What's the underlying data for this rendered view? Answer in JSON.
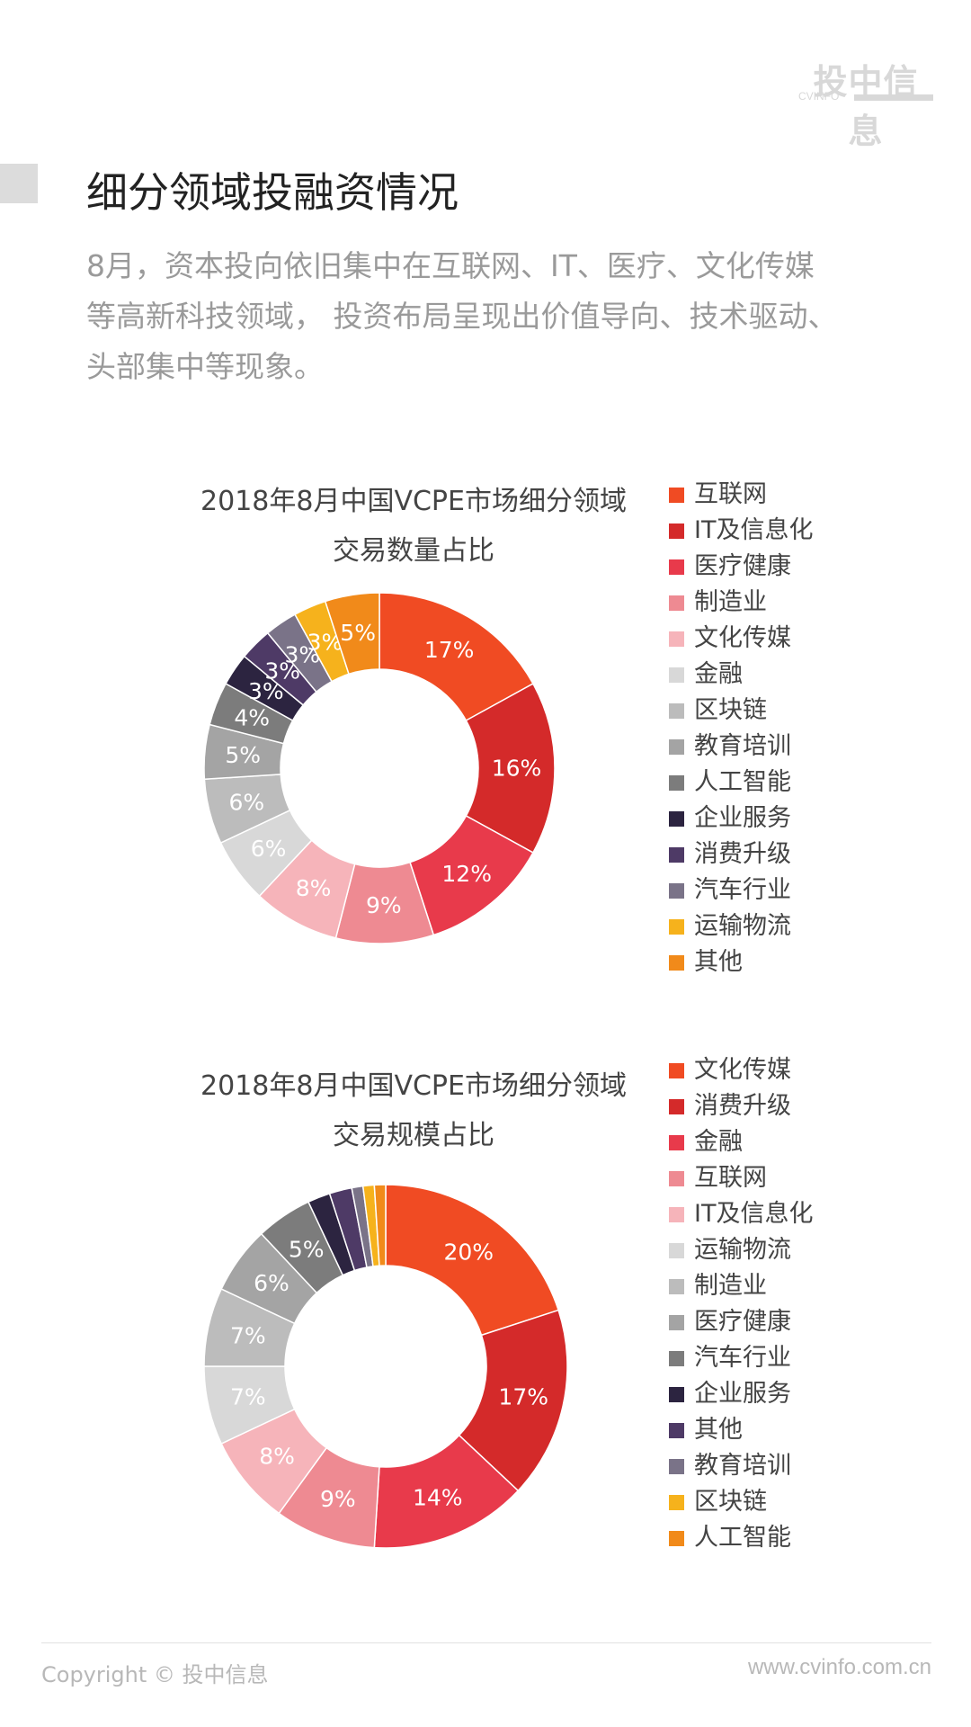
{
  "logo": {
    "main": "投中信息",
    "sub": "CVINFO"
  },
  "heading": "细分领域投融资情况",
  "intro_lines": [
    "8月，资本投向依旧集中在互联网、IT、医疗、文化传媒",
    "等高新科技领域， 投资布局呈现出价值导向、技术驱动、",
    "头部集中等现象。"
  ],
  "chart_data": [
    {
      "type": "pie",
      "donut": true,
      "title_lines": [
        "2018年8月中国VCPE市场细分领域",
        "交易数量占比"
      ],
      "legend_position": "right",
      "categories": [
        "互联网",
        "IT及信息化",
        "医疗健康",
        "制造业",
        "文化传媒",
        "金融",
        "区块链",
        "教育培训",
        "人工智能",
        "企业服务",
        "消费升级",
        "汽车行业",
        "运输物流",
        "其他"
      ],
      "values": [
        17,
        16,
        12,
        9,
        8,
        6,
        6,
        5,
        4,
        3,
        3,
        3,
        3,
        5
      ],
      "data_labels": [
        "17%",
        "16%",
        "12%",
        "9%",
        "8%",
        "6%",
        "6%",
        "5%",
        "4%",
        "3%",
        "3%",
        "3%",
        "3%",
        "5%"
      ],
      "colors": [
        "#f04b23",
        "#d42a2a",
        "#e83a4b",
        "#ee8a92",
        "#f6b4ba",
        "#d8d8d8",
        "#bcbcbc",
        "#a4a4a4",
        "#7c7c7c",
        "#2c2440",
        "#4e3a66",
        "#7a7388",
        "#f6b21c",
        "#f18a1a"
      ]
    },
    {
      "type": "pie",
      "donut": true,
      "title_lines": [
        "2018年8月中国VCPE市场细分领域",
        "交易规模占比"
      ],
      "legend_position": "right",
      "categories": [
        "文化传媒",
        "消费升级",
        "金融",
        "互联网",
        "IT及信息化",
        "运输物流",
        "制造业",
        "医疗健康",
        "汽车行业",
        "企业服务",
        "其他",
        "教育培训",
        "区块链",
        "人工智能"
      ],
      "values": [
        20,
        17,
        14,
        9,
        8,
        7,
        7,
        6,
        5,
        2,
        2,
        1,
        1,
        1
      ],
      "data_labels": [
        "20%",
        "17%",
        "14%",
        "9%",
        "8%",
        "7%",
        "7%",
        "6%",
        "5%",
        "",
        "",
        "",
        "",
        ""
      ],
      "colors": [
        "#f04b23",
        "#d42a2a",
        "#e83a4b",
        "#ee8a92",
        "#f6b4ba",
        "#d8d8d8",
        "#bcbcbc",
        "#a4a4a4",
        "#7c7c7c",
        "#2c2440",
        "#4e3a66",
        "#7a7388",
        "#f6b21c",
        "#f18a1a"
      ]
    }
  ],
  "footer": {
    "copyright": "Copyright © 投中信息",
    "url": "www.cvinfo.com.cn"
  }
}
